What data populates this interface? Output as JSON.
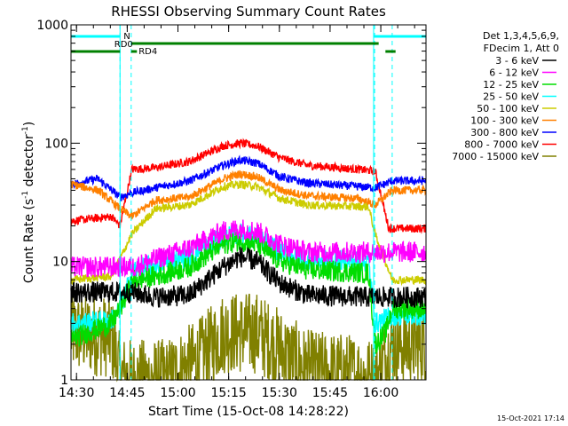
{
  "chart_data": {
    "type": "line",
    "title": "RHESSI Observing Summary Count Rates",
    "xlabel": "Start Time (15-Oct-08 14:28:22)",
    "ylabel": "Count Rate (s⁻¹ detector⁻¹)",
    "ylabel_main": "Count Rate (s",
    "ylabel_sup1": "-1",
    "ylabel_mid": " detector",
    "ylabel_sup2": "-1",
    "ylabel_end": ")",
    "yscale": "log",
    "ylim": [
      1,
      1000
    ],
    "xlim_min": [
      0,
      105
    ],
    "x_units": "minutes after 14:28:22",
    "x_ticks": [
      {
        "m": 1.63,
        "label": "14:30"
      },
      {
        "m": 16.63,
        "label": "14:45"
      },
      {
        "m": 31.63,
        "label": "15:00"
      },
      {
        "m": 46.63,
        "label": "15:15"
      },
      {
        "m": 61.63,
        "label": "15:30"
      },
      {
        "m": 76.63,
        "label": "15:45"
      },
      {
        "m": 91.63,
        "label": "16:00"
      }
    ],
    "y_ticks": [
      {
        "v": 1,
        "label": "1"
      },
      {
        "v": 10,
        "label": "10"
      },
      {
        "v": 100,
        "label": "100"
      },
      {
        "v": 1000,
        "label": "1000"
      }
    ],
    "legend_header": [
      "Det 1,3,4,5,6,9,",
      "FDecim 1, Att 0"
    ],
    "legend_position": "right",
    "footer_date": "15-Oct-2021 17:14",
    "night_intervals": [
      [
        0,
        14.5
      ],
      [
        89.5,
        105
      ]
    ],
    "night_label": "N",
    "saa_intervals_label": "RD0",
    "rd4_label": "RD4",
    "series": [
      {
        "name": "3 - 6 keV",
        "color": "#000000",
        "band": "lo",
        "pts": [
          [
            18.5,
            5.5
          ],
          [
            25,
            5.0
          ],
          [
            35,
            5.2
          ],
          [
            45,
            9.0
          ],
          [
            50,
            11.0
          ],
          [
            55,
            10.0
          ],
          [
            62,
            6.5
          ],
          [
            70,
            5.2
          ],
          [
            88,
            5.0
          ]
        ]
      },
      {
        "name": "6 - 12 keV",
        "color": "#ff00ff",
        "band": "lo",
        "pts": [
          [
            18.5,
            9.0
          ],
          [
            25,
            10.5
          ],
          [
            35,
            13
          ],
          [
            45,
            18
          ],
          [
            50,
            19
          ],
          [
            55,
            18
          ],
          [
            62,
            14
          ],
          [
            70,
            12
          ],
          [
            88,
            12
          ]
        ]
      },
      {
        "name": "12 - 25 keV",
        "color": "#00dd00",
        "band": "lo",
        "pts": [
          [
            0,
            2.2
          ],
          [
            12,
            3.0
          ],
          [
            14.5,
            4.0
          ],
          [
            18.5,
            7.0
          ],
          [
            25,
            7.5
          ],
          [
            35,
            9
          ],
          [
            45,
            14
          ],
          [
            50,
            15
          ],
          [
            55,
            14
          ],
          [
            62,
            10
          ],
          [
            70,
            8.5
          ],
          [
            88,
            8.0
          ],
          [
            90,
            2.0
          ],
          [
            93,
            2.5
          ],
          [
            95,
            4.0
          ]
        ]
      },
      {
        "name": "25 - 50 keV",
        "color": "#00ffff",
        "band": "lo",
        "pts": [
          [
            0,
            3.0
          ],
          [
            12,
            3.2
          ],
          [
            14.5,
            4.0
          ],
          [
            18.5,
            8.5
          ],
          [
            25,
            9.5
          ],
          [
            35,
            11
          ],
          [
            45,
            16
          ],
          [
            50,
            17
          ],
          [
            55,
            16
          ],
          [
            62,
            12
          ],
          [
            70,
            10.5
          ],
          [
            88,
            10
          ],
          [
            90,
            3.0
          ],
          [
            95,
            3.5
          ]
        ]
      },
      {
        "name": "50 - 100 keV",
        "color": "#cccc00",
        "band": "hi",
        "pts": [
          [
            0,
            7.0
          ],
          [
            12,
            7.5
          ],
          [
            18,
            17
          ],
          [
            25,
            28
          ],
          [
            35,
            30
          ],
          [
            45,
            43
          ],
          [
            50,
            45
          ],
          [
            55,
            43
          ],
          [
            62,
            34
          ],
          [
            70,
            30
          ],
          [
            88,
            29
          ],
          [
            90,
            17
          ],
          [
            95,
            7.0
          ]
        ]
      },
      {
        "name": "100 - 300 keV",
        "color": "#ff8000",
        "band": "hi",
        "pts": [
          [
            0,
            45
          ],
          [
            8,
            40
          ],
          [
            14.5,
            28
          ],
          [
            18,
            24
          ],
          [
            25,
            33
          ],
          [
            35,
            35
          ],
          [
            45,
            50
          ],
          [
            50,
            55
          ],
          [
            55,
            52
          ],
          [
            62,
            40
          ],
          [
            70,
            36
          ],
          [
            85,
            34
          ],
          [
            90,
            30
          ],
          [
            95,
            40
          ]
        ]
      },
      {
        "name": "300 - 800 keV",
        "color": "#0000ff",
        "band": "hi",
        "pts": [
          [
            0,
            45
          ],
          [
            8,
            50
          ],
          [
            14.5,
            35
          ],
          [
            18,
            38
          ],
          [
            25,
            42
          ],
          [
            35,
            48
          ],
          [
            45,
            65
          ],
          [
            50,
            72
          ],
          [
            55,
            68
          ],
          [
            62,
            52
          ],
          [
            70,
            46
          ],
          [
            85,
            43
          ],
          [
            90,
            42
          ],
          [
            95,
            48
          ]
        ]
      },
      {
        "name": "800 - 7000 keV",
        "color": "#ff0000",
        "band": "hi",
        "pts": [
          [
            0,
            22
          ],
          [
            12,
            24
          ],
          [
            14.5,
            20
          ],
          [
            18,
            60
          ],
          [
            25,
            62
          ],
          [
            35,
            70
          ],
          [
            45,
            95
          ],
          [
            50,
            100
          ],
          [
            55,
            95
          ],
          [
            62,
            75
          ],
          [
            70,
            65
          ],
          [
            85,
            60
          ],
          [
            90,
            58
          ],
          [
            94,
            19
          ]
        ]
      },
      {
        "name": "7000 - 15000 keV",
        "color": "#808000",
        "band": "noise",
        "pts": [
          [
            0,
            2.5
          ],
          [
            12,
            2.3
          ],
          [
            14.5,
            1.1
          ],
          [
            18,
            1.0
          ],
          [
            28,
            1.0
          ],
          [
            38,
            1.5
          ],
          [
            45,
            2.5
          ],
          [
            55,
            2.5
          ],
          [
            62,
            1.8
          ],
          [
            70,
            1.2
          ],
          [
            85,
            1.1
          ],
          [
            90,
            1.0
          ],
          [
            95,
            2.0
          ]
        ]
      }
    ]
  }
}
